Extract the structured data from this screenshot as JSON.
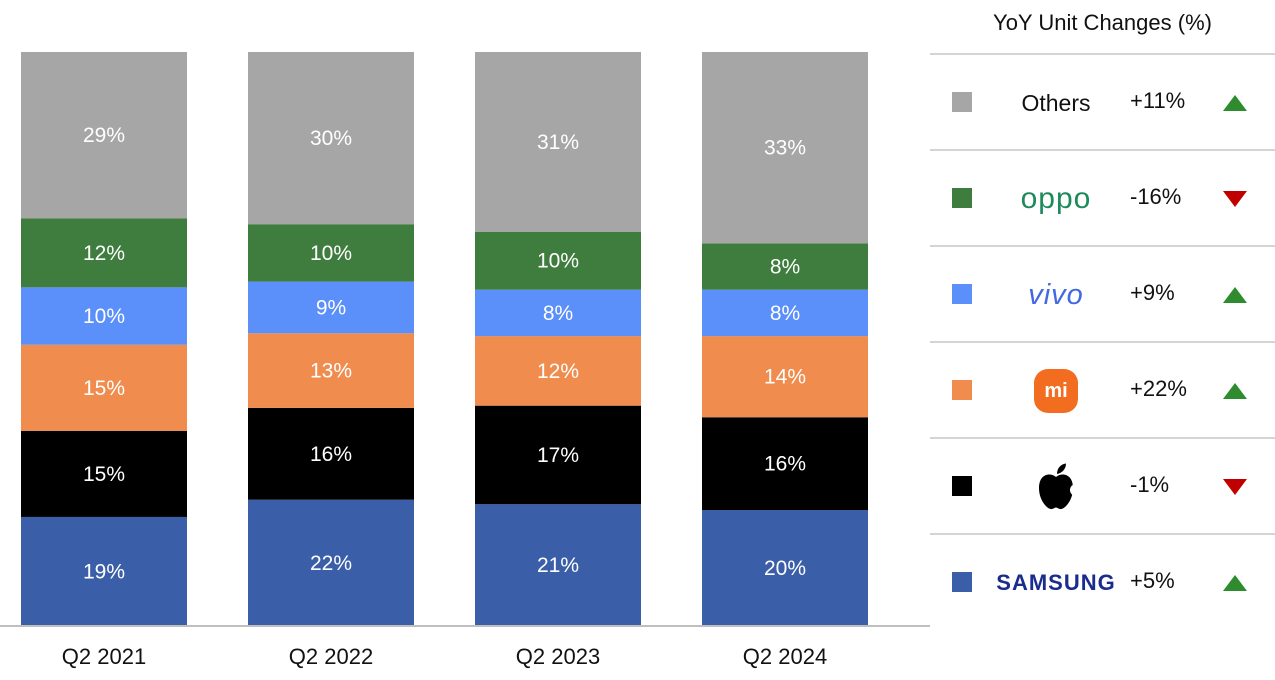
{
  "chart_data": {
    "type": "bar",
    "stacked": true,
    "categories": [
      "Q2 2021",
      "Q2 2022",
      "Q2 2023",
      "Q2 2024"
    ],
    "ylim": [
      0,
      100
    ],
    "series": [
      {
        "key": "samsung",
        "color": "#3a5fa8",
        "values": [
          19,
          22,
          21,
          20
        ],
        "labels": [
          "19%",
          "22%",
          "21%",
          "20%"
        ]
      },
      {
        "key": "apple",
        "color": "#000000",
        "values": [
          15,
          16,
          17,
          16
        ],
        "labels": [
          "15%",
          "16%",
          "17%",
          "16%"
        ]
      },
      {
        "key": "xiaomi",
        "color": "#ef8c4e",
        "values": [
          15,
          13,
          12,
          14
        ],
        "labels": [
          "15%",
          "13%",
          "12%",
          "14%"
        ]
      },
      {
        "key": "vivo",
        "color": "#5b8ff9",
        "values": [
          10,
          9,
          8,
          8
        ],
        "labels": [
          "10%",
          "9%",
          "8%",
          "8%"
        ]
      },
      {
        "key": "oppo",
        "color": "#3f7d3f",
        "values": [
          12,
          10,
          10,
          8
        ],
        "labels": [
          "12%",
          "10%",
          "10%",
          "8%"
        ]
      },
      {
        "name": "Others",
        "key": "others",
        "color": "#a6a6a6",
        "values": [
          29,
          30,
          31,
          33
        ],
        "labels": [
          "29%",
          "30%",
          "31%",
          "33%"
        ]
      }
    ],
    "legend_placement": "right",
    "grid": false
  },
  "legend": {
    "title": "YoY Unit Changes (%)",
    "rows": [
      {
        "brand": "Others",
        "logo": "text",
        "color": "#a6a6a6",
        "change": "+11%",
        "direction": "up"
      },
      {
        "brand": "oppo",
        "logo": "oppo-logo",
        "color": "#3f7d3f",
        "change": "-16%",
        "direction": "down"
      },
      {
        "brand": "vivo",
        "logo": "vivo-logo",
        "color": "#5b8ff9",
        "change": "+9%",
        "direction": "up"
      },
      {
        "brand": "mi",
        "logo": "xiaomi-logo",
        "color": "#ef8c4e",
        "change": "+22%",
        "direction": "up"
      },
      {
        "brand": "",
        "logo": "apple-logo",
        "color": "#000000",
        "change": "-1%",
        "direction": "down"
      },
      {
        "brand": "SAMSUNG",
        "logo": "samsung-logo",
        "color": "#3a5fa8",
        "change": "+5%",
        "direction": "up"
      }
    ],
    "arrow_colors": {
      "up": "#2e8b2e",
      "down": "#c00000"
    }
  }
}
